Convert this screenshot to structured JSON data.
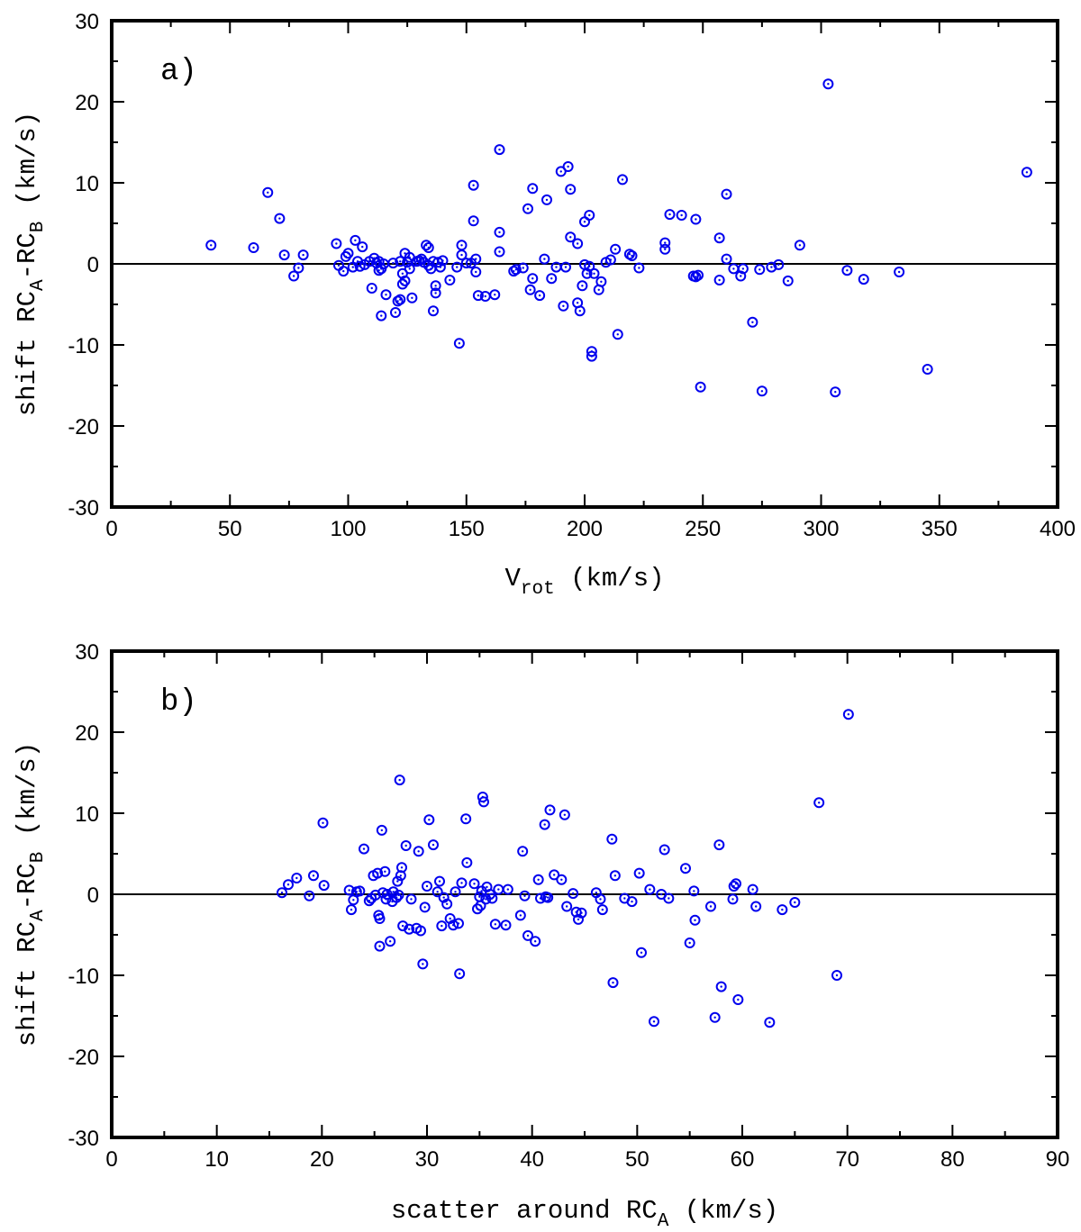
{
  "chart_data": [
    {
      "type": "scatter",
      "panel_label": "a)",
      "xlabel": {
        "main": "V",
        "sub": "rot",
        "rest": " (km/s)"
      },
      "ylabel": {
        "p1": "shift RC",
        "s1": "A",
        "p2": "-RC",
        "s2": "B",
        "p3": " (km/s)"
      },
      "xlim": [
        0,
        400
      ],
      "ylim": [
        -30,
        30
      ],
      "xticks": [
        0,
        50,
        100,
        150,
        200,
        250,
        300,
        350,
        400
      ],
      "xminor": 25,
      "yticks": [
        -30,
        -20,
        -10,
        0,
        10,
        20,
        30
      ],
      "yminor": 5,
      "zero_line": true,
      "marker_color": "#0000ee",
      "points": [
        [
          42,
          2.3
        ],
        [
          60,
          2.0
        ],
        [
          66,
          8.8
        ],
        [
          71,
          5.6
        ],
        [
          73,
          1.1
        ],
        [
          77,
          -1.5
        ],
        [
          79,
          -0.5
        ],
        [
          81,
          1.1
        ],
        [
          95,
          2.5
        ],
        [
          96,
          -0.2
        ],
        [
          98,
          -0.9
        ],
        [
          99,
          0.9
        ],
        [
          100,
          1.3
        ],
        [
          102,
          -0.4
        ],
        [
          103,
          2.9
        ],
        [
          104,
          0.3
        ],
        [
          105,
          -0.3
        ],
        [
          106,
          2.1
        ],
        [
          107,
          -0.1
        ],
        [
          109,
          0.3
        ],
        [
          110,
          -3.0
        ],
        [
          111,
          0.7
        ],
        [
          112,
          0.1
        ],
        [
          113,
          0.3
        ],
        [
          113,
          -0.8
        ],
        [
          114,
          -0.6
        ],
        [
          114,
          -6.4
        ],
        [
          115,
          0.0
        ],
        [
          116,
          -3.8
        ],
        [
          119,
          0.1
        ],
        [
          120,
          -6.0
        ],
        [
          121,
          -4.6
        ],
        [
          122,
          -4.4
        ],
        [
          122,
          0.3
        ],
        [
          123,
          -1.2
        ],
        [
          123,
          -2.5
        ],
        [
          124,
          1.3
        ],
        [
          124,
          -2.1
        ],
        [
          125,
          0.2
        ],
        [
          126,
          0.8
        ],
        [
          126,
          -0.6
        ],
        [
          127,
          -4.2
        ],
        [
          129,
          0.3
        ],
        [
          130,
          0.4
        ],
        [
          131,
          0.6
        ],
        [
          132,
          0.2
        ],
        [
          133,
          2.3
        ],
        [
          134,
          2.0
        ],
        [
          134,
          -0.2
        ],
        [
          135,
          -0.6
        ],
        [
          136,
          -5.8
        ],
        [
          136,
          0.3
        ],
        [
          137,
          -2.7
        ],
        [
          137,
          -3.6
        ],
        [
          138,
          0.2
        ],
        [
          139,
          -0.4
        ],
        [
          140,
          0.4
        ],
        [
          143,
          -2.0
        ],
        [
          146,
          -0.4
        ],
        [
          147,
          -9.8
        ],
        [
          148,
          2.3
        ],
        [
          148,
          1.1
        ],
        [
          150,
          0.1
        ],
        [
          152,
          0.1
        ],
        [
          153,
          5.3
        ],
        [
          153,
          9.7
        ],
        [
          154,
          0.6
        ],
        [
          154,
          -1.0
        ],
        [
          155,
          -3.9
        ],
        [
          158,
          -4.0
        ],
        [
          162,
          -3.8
        ],
        [
          164,
          14.1
        ],
        [
          164,
          1.5
        ],
        [
          164,
          3.9
        ],
        [
          170,
          -0.9
        ],
        [
          171,
          -0.7
        ],
        [
          174,
          -0.5
        ],
        [
          176,
          6.8
        ],
        [
          177,
          -3.2
        ],
        [
          178,
          9.3
        ],
        [
          178,
          -1.8
        ],
        [
          181,
          -3.9
        ],
        [
          183,
          0.6
        ],
        [
          184,
          7.9
        ],
        [
          186,
          -1.8
        ],
        [
          188,
          -0.4
        ],
        [
          190,
          11.4
        ],
        [
          191,
          -5.2
        ],
        [
          192,
          -0.4
        ],
        [
          193,
          12.0
        ],
        [
          194,
          3.3
        ],
        [
          194,
          9.2
        ],
        [
          197,
          2.5
        ],
        [
          197,
          -4.8
        ],
        [
          198,
          -5.8
        ],
        [
          199,
          -2.7
        ],
        [
          200,
          -0.1
        ],
        [
          200,
          5.2
        ],
        [
          201,
          -1.2
        ],
        [
          202,
          6.0
        ],
        [
          202,
          -0.3
        ],
        [
          203,
          -10.8
        ],
        [
          203,
          -11.4
        ],
        [
          204,
          -1.2
        ],
        [
          206,
          -3.2
        ],
        [
          207,
          -2.2
        ],
        [
          209,
          0.2
        ],
        [
          211,
          0.5
        ],
        [
          213,
          1.8
        ],
        [
          214,
          -8.7
        ],
        [
          216,
          10.4
        ],
        [
          219,
          1.2
        ],
        [
          220,
          1.0
        ],
        [
          223,
          -0.5
        ],
        [
          234,
          2.6
        ],
        [
          234,
          1.8
        ],
        [
          236,
          6.1
        ],
        [
          241,
          6.0
        ],
        [
          246,
          -1.5
        ],
        [
          247,
          5.5
        ],
        [
          247,
          -1.6
        ],
        [
          248,
          -1.4
        ],
        [
          249,
          -15.2
        ],
        [
          257,
          3.2
        ],
        [
          257,
          -2.0
        ],
        [
          260,
          8.6
        ],
        [
          260,
          0.6
        ],
        [
          263,
          -0.6
        ],
        [
          266,
          -1.5
        ],
        [
          267,
          -0.6
        ],
        [
          271,
          -7.2
        ],
        [
          274,
          -0.7
        ],
        [
          275,
          -15.7
        ],
        [
          279,
          -0.4
        ],
        [
          282,
          -0.1
        ],
        [
          286,
          -2.1
        ],
        [
          291,
          2.3
        ],
        [
          303,
          22.2
        ],
        [
          306,
          -15.8
        ],
        [
          311,
          -0.8
        ],
        [
          318,
          -1.9
        ],
        [
          333,
          -1.0
        ],
        [
          345,
          -13.0
        ],
        [
          387,
          11.3
        ]
      ]
    },
    {
      "type": "scatter",
      "panel_label": "b)",
      "xlabel": {
        "main": "scatter around RC",
        "sub": "A",
        "rest": " (km/s)"
      },
      "ylabel": {
        "p1": "shift RC",
        "s1": "A",
        "p2": "-RC",
        "s2": "B",
        "p3": " (km/s)"
      },
      "xlim": [
        0,
        90
      ],
      "ylim": [
        -30,
        30
      ],
      "xticks": [
        0,
        10,
        20,
        30,
        40,
        50,
        60,
        70,
        80,
        90
      ],
      "xminor": 5,
      "yticks": [
        -30,
        -20,
        -10,
        0,
        10,
        20,
        30
      ],
      "yminor": 5,
      "zero_line": true,
      "marker_color": "#0000ee",
      "points": [
        [
          16.2,
          0.2
        ],
        [
          16.8,
          1.2
        ],
        [
          17.6,
          2.0
        ],
        [
          18.8,
          -0.2
        ],
        [
          19.2,
          2.3
        ],
        [
          20.1,
          8.8
        ],
        [
          20.2,
          1.1
        ],
        [
          22.6,
          0.5
        ],
        [
          22.8,
          -1.9
        ],
        [
          23.0,
          -0.7
        ],
        [
          23.3,
          0.3
        ],
        [
          23.6,
          0.4
        ],
        [
          24.0,
          5.6
        ],
        [
          24.5,
          -0.8
        ],
        [
          24.7,
          -0.5
        ],
        [
          24.9,
          2.3
        ],
        [
          25.1,
          -0.1
        ],
        [
          25.3,
          2.6
        ],
        [
          25.4,
          -2.6
        ],
        [
          25.5,
          -3.0
        ],
        [
          25.5,
          -6.4
        ],
        [
          25.7,
          7.9
        ],
        [
          25.8,
          0.2
        ],
        [
          26.0,
          2.8
        ],
        [
          26.1,
          -0.6
        ],
        [
          26.2,
          0.0
        ],
        [
          26.5,
          -5.8
        ],
        [
          26.7,
          -0.9
        ],
        [
          26.8,
          0.3
        ],
        [
          27.1,
          -0.4
        ],
        [
          27.2,
          1.6
        ],
        [
          27.3,
          -0.1
        ],
        [
          27.4,
          14.1
        ],
        [
          27.5,
          2.3
        ],
        [
          27.6,
          3.3
        ],
        [
          27.7,
          -3.9
        ],
        [
          28.0,
          6.0
        ],
        [
          28.3,
          -4.3
        ],
        [
          28.5,
          -0.6
        ],
        [
          29.0,
          -4.2
        ],
        [
          29.2,
          5.3
        ],
        [
          29.4,
          -4.5
        ],
        [
          29.6,
          -8.6
        ],
        [
          29.8,
          -1.6
        ],
        [
          30.0,
          1.0
        ],
        [
          30.2,
          9.2
        ],
        [
          30.6,
          6.1
        ],
        [
          31.0,
          0.3
        ],
        [
          31.2,
          1.6
        ],
        [
          31.4,
          -3.9
        ],
        [
          31.6,
          -0.4
        ],
        [
          31.9,
          -1.2
        ],
        [
          32.2,
          -3.0
        ],
        [
          32.5,
          -3.8
        ],
        [
          32.7,
          0.3
        ],
        [
          33.0,
          -3.6
        ],
        [
          33.1,
          -9.8
        ],
        [
          33.3,
          1.4
        ],
        [
          33.7,
          9.3
        ],
        [
          33.8,
          3.9
        ],
        [
          34.5,
          1.3
        ],
        [
          34.8,
          -1.8
        ],
        [
          35.0,
          -0.3
        ],
        [
          35.1,
          -1.4
        ],
        [
          35.2,
          0.4
        ],
        [
          35.3,
          12.0
        ],
        [
          35.4,
          11.4
        ],
        [
          35.6,
          -0.6
        ],
        [
          35.7,
          0.9
        ],
        [
          36.0,
          0.0
        ],
        [
          36.2,
          -0.5
        ],
        [
          36.5,
          -3.7
        ],
        [
          36.8,
          0.6
        ],
        [
          37.5,
          -3.8
        ],
        [
          37.7,
          0.6
        ],
        [
          38.9,
          -2.6
        ],
        [
          39.1,
          5.3
        ],
        [
          39.3,
          -0.2
        ],
        [
          39.6,
          -5.1
        ],
        [
          40.3,
          -5.8
        ],
        [
          40.6,
          1.8
        ],
        [
          40.8,
          -0.5
        ],
        [
          41.2,
          8.6
        ],
        [
          41.3,
          -0.3
        ],
        [
          41.5,
          -0.4
        ],
        [
          41.7,
          10.4
        ],
        [
          42.1,
          2.4
        ],
        [
          42.8,
          1.8
        ],
        [
          43.1,
          9.8
        ],
        [
          43.3,
          -1.5
        ],
        [
          43.9,
          0.1
        ],
        [
          44.2,
          -2.2
        ],
        [
          44.4,
          -3.1
        ],
        [
          44.7,
          -2.3
        ],
        [
          46.1,
          0.2
        ],
        [
          46.5,
          -0.6
        ],
        [
          46.7,
          -1.9
        ],
        [
          47.6,
          6.8
        ],
        [
          47.7,
          -10.9
        ],
        [
          47.9,
          2.3
        ],
        [
          48.8,
          -0.5
        ],
        [
          49.5,
          -0.9
        ],
        [
          50.2,
          2.6
        ],
        [
          50.4,
          -7.2
        ],
        [
          51.2,
          0.6
        ],
        [
          51.6,
          -15.7
        ],
        [
          52.3,
          0.0
        ],
        [
          52.6,
          5.5
        ],
        [
          53.0,
          -0.5
        ],
        [
          54.6,
          3.2
        ],
        [
          55.0,
          -6.0
        ],
        [
          55.4,
          0.4
        ],
        [
          55.5,
          -3.2
        ],
        [
          57.0,
          -1.5
        ],
        [
          57.4,
          -15.2
        ],
        [
          57.8,
          6.1
        ],
        [
          58.0,
          -11.4
        ],
        [
          59.1,
          -0.6
        ],
        [
          59.2,
          1.0
        ],
        [
          59.4,
          1.3
        ],
        [
          59.6,
          -13.0
        ],
        [
          61.0,
          0.6
        ],
        [
          61.3,
          -1.5
        ],
        [
          62.6,
          -15.8
        ],
        [
          63.8,
          -1.9
        ],
        [
          65.0,
          -1.0
        ],
        [
          67.3,
          11.3
        ],
        [
          69.0,
          -10.0
        ],
        [
          70.1,
          22.2
        ]
      ]
    }
  ]
}
